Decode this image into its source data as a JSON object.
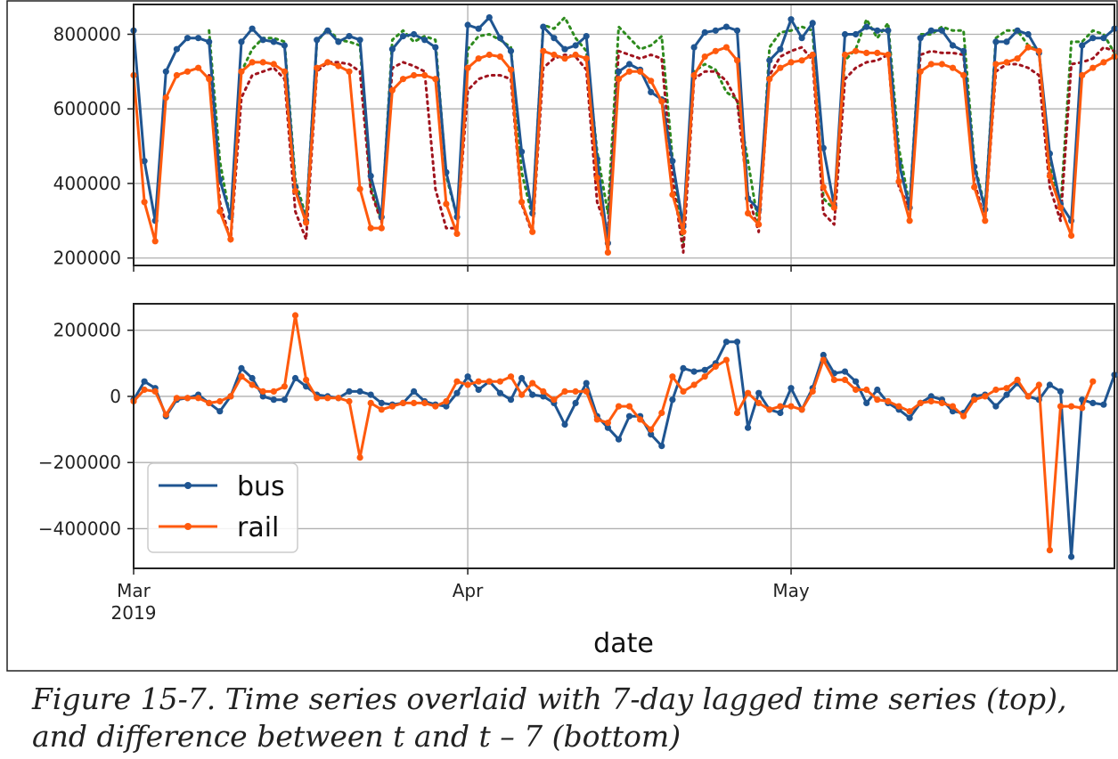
{
  "caption": "Figure 15-7. Time series overlaid with 7-day lagged time series (top), and difference between t and t – 7 (bottom)",
  "colors": {
    "bus": "#1f5591",
    "rail": "#ff5a0d",
    "bus_lag": "#2e8b1e",
    "rail_lag": "#a0141e",
    "grid": "#b0b0b0"
  },
  "chart_data": [
    {
      "type": "line",
      "panel": "top",
      "xlabel": "",
      "ylabel": "",
      "x_start": "2019-03-01",
      "x_end": "2019-05-31",
      "ylim": [
        180000,
        880000
      ],
      "yticks": [
        200000,
        400000,
        600000,
        800000
      ],
      "ytick_labels": [
        "200000",
        "400000",
        "600000",
        "800000"
      ],
      "grid": true,
      "series": [
        {
          "key": "bus",
          "style": "solid-dots",
          "values": [
            810000,
            460000,
            300000,
            700000,
            760000,
            790000,
            790000,
            780000,
            410000,
            310000,
            780000,
            815000,
            785000,
            780000,
            770000,
            390000,
            300000,
            785000,
            810000,
            780000,
            795000,
            785000,
            420000,
            310000,
            760000,
            795000,
            800000,
            785000,
            765000,
            430000,
            310000,
            825000,
            815000,
            845000,
            790000,
            755000,
            485000,
            320000,
            820000,
            790000,
            760000,
            770000,
            795000,
            465000,
            240000,
            700000,
            720000,
            705000,
            645000,
            625000,
            460000,
            285000,
            765000,
            805000,
            810000,
            820000,
            810000,
            360000,
            330000,
            730000,
            760000,
            840000,
            790000,
            830000,
            495000,
            340000,
            800000,
            800000,
            820000,
            810000,
            810000,
            455000,
            335000,
            790000,
            810000,
            810000,
            770000,
            755000,
            445000,
            330000,
            780000,
            780000,
            810000,
            800000,
            750000,
            480000,
            345000,
            300000,
            770000,
            790000,
            790000,
            815000
          ]
        },
        {
          "key": "rail",
          "style": "solid-dots",
          "values": [
            690000,
            350000,
            245000,
            630000,
            690000,
            700000,
            710000,
            680000,
            325000,
            250000,
            700000,
            725000,
            725000,
            720000,
            700000,
            380000,
            295000,
            710000,
            725000,
            715000,
            700000,
            385000,
            280000,
            280000,
            650000,
            680000,
            690000,
            690000,
            680000,
            345000,
            265000,
            710000,
            735000,
            745000,
            740000,
            705000,
            350000,
            270000,
            755000,
            745000,
            735000,
            745000,
            735000,
            415000,
            215000,
            680000,
            700000,
            700000,
            675000,
            620000,
            370000,
            270000,
            690000,
            740000,
            755000,
            765000,
            730000,
            320000,
            290000,
            680000,
            710000,
            725000,
            730000,
            745000,
            390000,
            335000,
            745000,
            755000,
            750000,
            750000,
            745000,
            405000,
            300000,
            700000,
            720000,
            720000,
            710000,
            690000,
            390000,
            300000,
            720000,
            725000,
            735000,
            765000,
            755000,
            420000,
            335000,
            260000,
            690000,
            710000,
            725000,
            740000
          ]
        },
        {
          "key": "bus_lag",
          "style": "dotted",
          "lag": 7
        },
        {
          "key": "rail_lag",
          "style": "dotted",
          "lag": 7
        }
      ]
    },
    {
      "type": "line",
      "panel": "bottom",
      "xlabel": "date",
      "ylabel": "",
      "x_start": "2019-03-01",
      "x_end": "2019-05-31",
      "xticks": [
        {
          "date": "2019-03-01",
          "label": "Mar",
          "sublabel": "2019"
        },
        {
          "date": "2019-04-01",
          "label": "Apr",
          "sublabel": ""
        },
        {
          "date": "2019-05-01",
          "label": "May",
          "sublabel": ""
        }
      ],
      "ylim": [
        -520000,
        280000
      ],
      "yticks": [
        -400000,
        -200000,
        0,
        200000
      ],
      "ytick_labels": [
        "−400000",
        "−200000",
        "0",
        "200000"
      ],
      "grid": true,
      "legend_placement": "lower-left",
      "series": [
        {
          "name": "bus",
          "key": "bus",
          "values": [
            -10000,
            45000,
            25000,
            -60000,
            -10000,
            -5000,
            5000,
            -20000,
            -45000,
            0,
            85000,
            55000,
            0,
            -10000,
            -10000,
            55000,
            30000,
            5000,
            0,
            -5000,
            15000,
            15000,
            5000,
            -20000,
            -25000,
            -20000,
            15000,
            -15000,
            -25000,
            -30000,
            10000,
            60000,
            20000,
            45000,
            10000,
            -10000,
            55000,
            5000,
            0,
            -20000,
            -85000,
            -20000,
            40000,
            -60000,
            -95000,
            -130000,
            -60000,
            -60000,
            -115000,
            -150000,
            -10000,
            85000,
            75000,
            80000,
            100000,
            165000,
            165000,
            -95000,
            10000,
            -40000,
            -50000,
            25000,
            -40000,
            25000,
            125000,
            70000,
            75000,
            45000,
            -20000,
            20000,
            -20000,
            -40000,
            -65000,
            -20000,
            0,
            -10000,
            -45000,
            -50000,
            0,
            5000,
            -30000,
            5000,
            40000,
            0,
            -10000,
            35000,
            15000,
            -485000,
            -10000,
            -20000,
            -25000,
            65000
          ]
        },
        {
          "name": "rail",
          "key": "rail",
          "values": [
            -15000,
            20000,
            15000,
            -55000,
            -5000,
            -5000,
            -5000,
            -20000,
            -15000,
            0,
            60000,
            35000,
            15000,
            15000,
            30000,
            245000,
            50000,
            -5000,
            -5000,
            -5000,
            -15000,
            -185000,
            -20000,
            -40000,
            -30000,
            -20000,
            -20000,
            -20000,
            -30000,
            -15000,
            45000,
            35000,
            45000,
            45000,
            45000,
            60000,
            5000,
            40000,
            15000,
            -10000,
            15000,
            15000,
            15000,
            -70000,
            -80000,
            -30000,
            -30000,
            -70000,
            -100000,
            -50000,
            60000,
            15000,
            35000,
            60000,
            90000,
            110000,
            -50000,
            10000,
            -20000,
            -40000,
            -30000,
            -30000,
            -40000,
            15000,
            110000,
            50000,
            50000,
            20000,
            20000,
            -10000,
            -15000,
            -30000,
            -45000,
            -20000,
            -15000,
            -20000,
            -30000,
            -60000,
            -10000,
            0,
            20000,
            25000,
            50000,
            0,
            35000,
            -465000,
            -30000,
            -30000,
            -35000,
            45000
          ]
        }
      ]
    }
  ]
}
